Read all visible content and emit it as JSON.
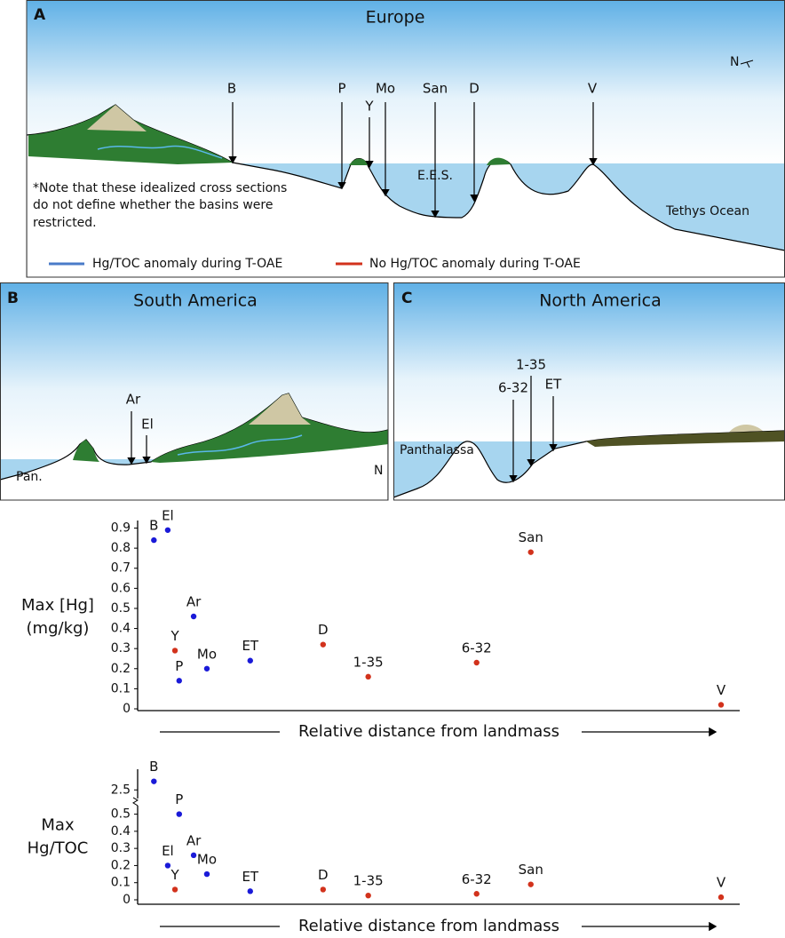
{
  "panels": [
    {
      "letter": "A",
      "title": "Europe",
      "north": "N",
      "sea": "E.E.S.",
      "ocean": "Tethys Ocean",
      "note": [
        "*Note that these idealized cross sections",
        "do not define whether the basins were",
        "restricted."
      ],
      "sites": [
        {
          "name": "B",
          "color": "#1a1ad8"
        },
        {
          "name": "P",
          "color": "#1a1ad8"
        },
        {
          "name": "Y",
          "color": "#d2321c"
        },
        {
          "name": "Mo",
          "color": "#1a1ad8"
        },
        {
          "name": "San",
          "color": "#d2321c"
        },
        {
          "name": "D",
          "color": "#d2321c"
        },
        {
          "name": "V",
          "color": "#d2321c"
        }
      ]
    },
    {
      "letter": "B",
      "title": "South America",
      "north": "N",
      "ocean": "Pan.",
      "sites": [
        {
          "name": "Ar",
          "color": "#1a1ad8"
        },
        {
          "name": "El",
          "color": "#1a1ad8"
        }
      ]
    },
    {
      "letter": "C",
      "title": "North America",
      "ocean": "Panthalassa",
      "sites": [
        {
          "name": "1-35",
          "color": "#d2321c"
        },
        {
          "name": "6-32",
          "color": "#d2321c"
        },
        {
          "name": "ET",
          "color": "#1a1ad8"
        }
      ]
    }
  ],
  "legend": [
    {
      "name": "Hg/TOC anomaly during T-OAE",
      "color": "#4a7bc8"
    },
    {
      "name": "No Hg/TOC anomaly during T-OAE",
      "color": "#d2321c"
    }
  ],
  "chart_data": [
    {
      "type": "scatter",
      "y_label": [
        "Max [Hg]",
        "(mg/kg)"
      ],
      "x_label": "Relative distance from landmass",
      "labels": [
        "B",
        "El",
        "Y",
        "P",
        "Ar",
        "Mo",
        "ET",
        "D",
        "1-35",
        "6-32",
        "San",
        "V"
      ],
      "colors": [
        "#1a1ad8",
        "#1a1ad8",
        "#d2321c",
        "#1a1ad8",
        "#1a1ad8",
        "#1a1ad8",
        "#1a1ad8",
        "#d2321c",
        "#d2321c",
        "#d2321c",
        "#d2321c",
        "#d2321c"
      ],
      "x": [
        2.7,
        5.0,
        6.2,
        6.9,
        9.3,
        11.5,
        18.7,
        30.8,
        38.3,
        56.3,
        65.3,
        96.9
      ],
      "values": [
        0.84,
        0.89,
        0.29,
        0.14,
        0.46,
        0.2,
        0.24,
        0.32,
        0.16,
        0.23,
        0.78,
        0.02
      ],
      "xlim": [
        0,
        100
      ],
      "ylim": [
        0,
        0.92
      ],
      "yticks": [
        0,
        0.1,
        0.2,
        0.3,
        0.4,
        0.5,
        0.6,
        0.7,
        0.8,
        0.9
      ]
    },
    {
      "type": "scatter",
      "y_label": [
        "Max",
        "Hg/TOC"
      ],
      "x_label": "Relative distance from landmass",
      "labels": [
        "B",
        "P",
        "El",
        "Y",
        "Ar",
        "Mo",
        "ET",
        "D",
        "1-35",
        "6-32",
        "San",
        "V"
      ],
      "colors": [
        "#1a1ad8",
        "#1a1ad8",
        "#1a1ad8",
        "#d2321c",
        "#1a1ad8",
        "#1a1ad8",
        "#1a1ad8",
        "#d2321c",
        "#d2321c",
        "#d2321c",
        "#d2321c",
        "#d2321c"
      ],
      "x": [
        2.7,
        6.9,
        5.0,
        6.2,
        9.3,
        11.5,
        18.7,
        30.8,
        38.3,
        56.3,
        65.3,
        96.9
      ],
      "values": [
        2.55,
        0.5,
        0.2,
        0.06,
        0.26,
        0.15,
        0.05,
        0.06,
        0.025,
        0.035,
        0.09,
        0.015
      ],
      "xlim": [
        0,
        100
      ],
      "ylim": [
        0,
        2.6
      ],
      "ybreak": [
        0.55,
        2.45
      ],
      "yticks": [
        0,
        0.1,
        0.2,
        0.3,
        0.4,
        0.5,
        2.5
      ]
    }
  ]
}
